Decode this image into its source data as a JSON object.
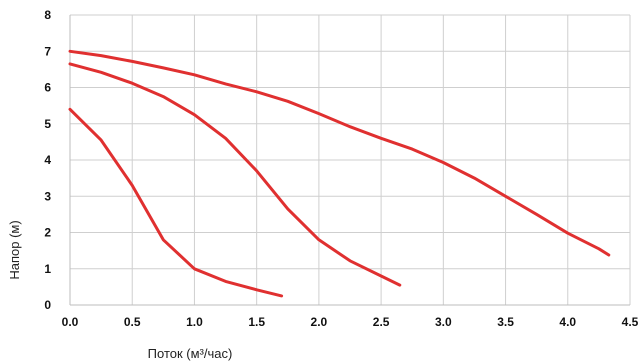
{
  "chart_data": {
    "type": "line",
    "title": "",
    "xlabel": "Поток (м³/час)",
    "ylabel": "Напор (м)",
    "xlim": [
      0,
      4.5
    ],
    "ylim": [
      0,
      8
    ],
    "xticks": [
      "0.0",
      "0.5",
      "1.0",
      "1.5",
      "2.0",
      "2.5",
      "3.0",
      "3.5",
      "4.0",
      "4.5"
    ],
    "yticks": [
      "0",
      "1",
      "2",
      "3",
      "4",
      "5",
      "6",
      "7",
      "8"
    ],
    "grid": true,
    "legend": "none",
    "series_color": "#e03030",
    "series": [
      {
        "x": [
          0.0,
          0.25,
          0.5,
          0.75,
          1.0,
          1.25,
          1.5,
          1.7
        ],
        "y": [
          5.4,
          4.55,
          3.3,
          1.8,
          1.0,
          0.65,
          0.42,
          0.25
        ]
      },
      {
        "x": [
          0.0,
          0.25,
          0.5,
          0.75,
          1.0,
          1.25,
          1.5,
          1.75,
          2.0,
          2.25,
          2.5,
          2.65
        ],
        "y": [
          6.65,
          6.42,
          6.12,
          5.75,
          5.25,
          4.6,
          3.7,
          2.65,
          1.8,
          1.22,
          0.8,
          0.55
        ]
      },
      {
        "x": [
          0.0,
          0.25,
          0.5,
          0.75,
          1.0,
          1.25,
          1.5,
          1.75,
          2.0,
          2.25,
          2.5,
          2.75,
          3.0,
          3.25,
          3.5,
          3.75,
          4.0,
          4.25,
          4.33
        ],
        "y": [
          7.0,
          6.88,
          6.72,
          6.54,
          6.35,
          6.1,
          5.88,
          5.62,
          5.28,
          4.92,
          4.6,
          4.3,
          3.93,
          3.5,
          3.0,
          2.5,
          1.98,
          1.55,
          1.38
        ]
      }
    ]
  }
}
